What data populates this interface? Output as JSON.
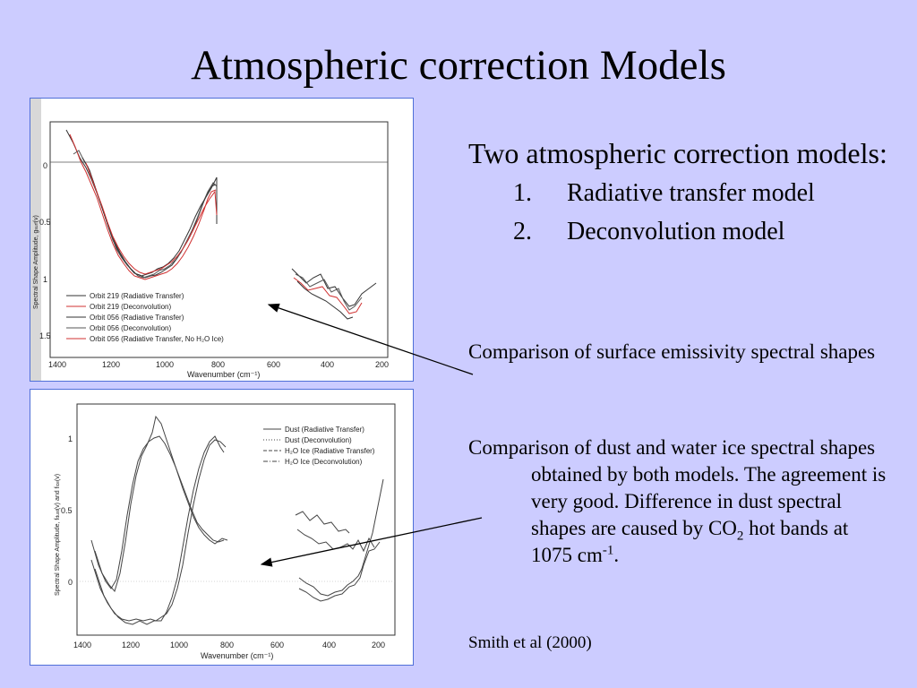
{
  "title": "Atmospheric correction Models",
  "main_text": {
    "heading": "Two atmospheric correction models:",
    "items": [
      {
        "num": "1.",
        "label": "Radiative transfer model"
      },
      {
        "num": "2.",
        "label": "Deconvolution model"
      }
    ],
    "para1": "Comparison of surface emissivity spectral shapes",
    "para2_a": "Comparison of dust and water ice spectral shapes obtained by both models.  The agreement is very good.  Difference in dust spectral shapes are caused by CO",
    "para2_sub": "2",
    "para2_b": " hot bands at 1075 cm",
    "para2_sup": "-1",
    "para2_c": ".",
    "citation": "Smith et al (2000)"
  },
  "figure1": {
    "ylabel": "Spectral Shape Amplitude, g",
    "ylabel_sub": "surf",
    "ylabel_tail": "(v)",
    "xlabel": "Wavenumber (cm⁻¹)",
    "y_ticks": [
      "0",
      "0.5",
      "1",
      "1.5"
    ],
    "x_ticks": [
      "1400",
      "1200",
      "1000",
      "800",
      "600",
      "400",
      "200"
    ],
    "legend": [
      {
        "label": "Orbit 219  (Radiative Transfer)",
        "color": "#333333"
      },
      {
        "label": "Orbit 219  (Deconvolution)",
        "color": "#d03030"
      },
      {
        "label": "Orbit 056  (Radiative Transfer)",
        "color": "#333333"
      },
      {
        "label": "Orbit 056  (Deconvolution)",
        "color": "#555555"
      },
      {
        "label": "Orbit 056  (Radiative Transfer, No H₂O Ice)",
        "color": "#d03030"
      }
    ]
  },
  "figure2": {
    "ylabel": "Spectral Shape Amplitude, f",
    "ylabel_sub1": "dust",
    "ylabel_mid": "(v) and f",
    "ylabel_sub2": "ice",
    "ylabel_tail": "(v)",
    "xlabel": "Wavenumber (cm⁻¹)",
    "y_ticks": [
      "1",
      "0.5",
      "0"
    ],
    "x_ticks": [
      "1400",
      "1200",
      "1000",
      "800",
      "600",
      "400",
      "200"
    ],
    "legend": [
      {
        "label": "Dust  (Radiative Transfer)",
        "style": "solid"
      },
      {
        "label": "Dust  (Deconvolution)",
        "style": "dotted"
      },
      {
        "label": "H₂O Ice  (Radiative Transfer)",
        "style": "dashed"
      },
      {
        "label": "H₂O Ice  (Deconvolution)",
        "style": "dashdot"
      }
    ]
  }
}
